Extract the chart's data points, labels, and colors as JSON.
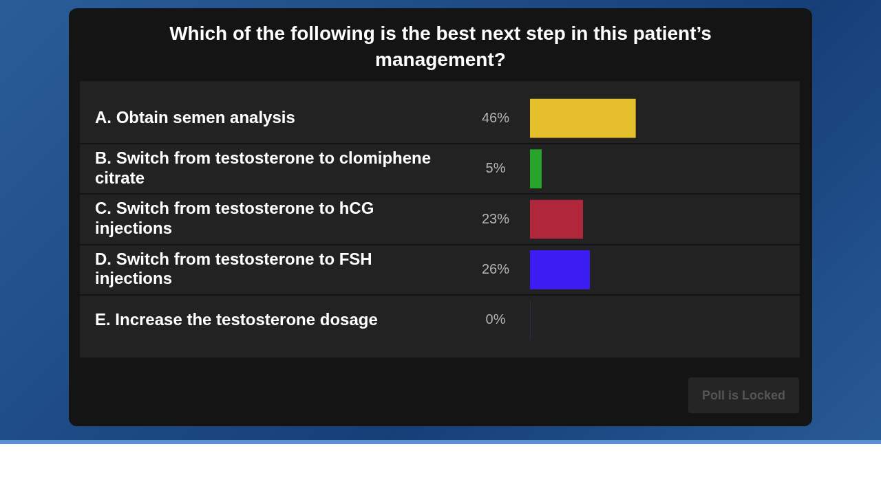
{
  "chart_data": {
    "type": "bar",
    "orientation": "horizontal",
    "title": "Which of the following is the best next step in this patient’s management?",
    "categories": [
      "A. Obtain semen analysis",
      "B. Switch from testosterone to clomiphene citrate",
      "C. Switch from testosterone to hCG injections",
      "D. Switch from testosterone to FSH injections",
      "E. Increase the testosterone dosage"
    ],
    "values": [
      46,
      5,
      23,
      26,
      0
    ],
    "value_labels": [
      "46%",
      "5%",
      "23%",
      "26%",
      "0%"
    ],
    "colors": [
      "#e6c02c",
      "#28a32c",
      "#b0263a",
      "#3b1cf2",
      "#7a2fa8"
    ],
    "legend": false,
    "tick_labels": "y",
    "annotations": [
      "Poll is Locked"
    ]
  }
}
